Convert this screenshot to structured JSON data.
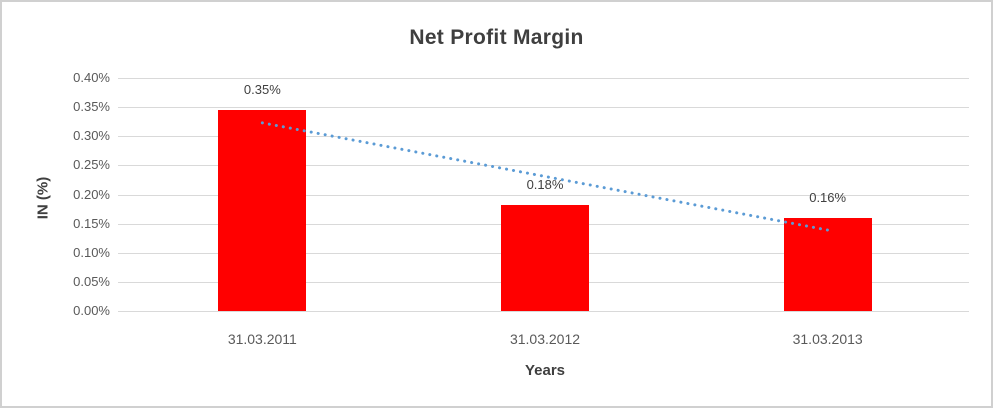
{
  "window": {
    "background": "#FFFFFF",
    "border_color": "#D0D0D0"
  },
  "chart_data": {
    "type": "bar",
    "title": "Net Profit Margin",
    "xlabel": "Years",
    "ylabel": "IN (%)",
    "categories": [
      "31.03.2011",
      "31.03.2012",
      "31.03.2013"
    ],
    "values": [
      0.35,
      0.18,
      0.16
    ],
    "plotted_values": [
      0.345,
      0.182,
      0.16
    ],
    "data_labels": [
      "0.35%",
      "0.18%",
      "0.16%"
    ],
    "unit": "percent",
    "ylim": [
      0,
      0.4
    ],
    "ytick_step": 0.05,
    "ytick_labels": [
      "0.00%",
      "0.05%",
      "0.10%",
      "0.15%",
      "0.20%",
      "0.25%",
      "0.30%",
      "0.35%",
      "0.40%"
    ],
    "grid": true,
    "legend": false,
    "trendline": {
      "type": "linear",
      "style": "dotted",
      "start_value": 0.323,
      "end_value": 0.139
    },
    "colors": {
      "bar": "#FF0000",
      "trendline": "#5B9BD5",
      "gridline": "#D9D9D9",
      "title_text": "#3F3F3F",
      "tick_text": "#595959",
      "label_text": "#404040"
    }
  }
}
